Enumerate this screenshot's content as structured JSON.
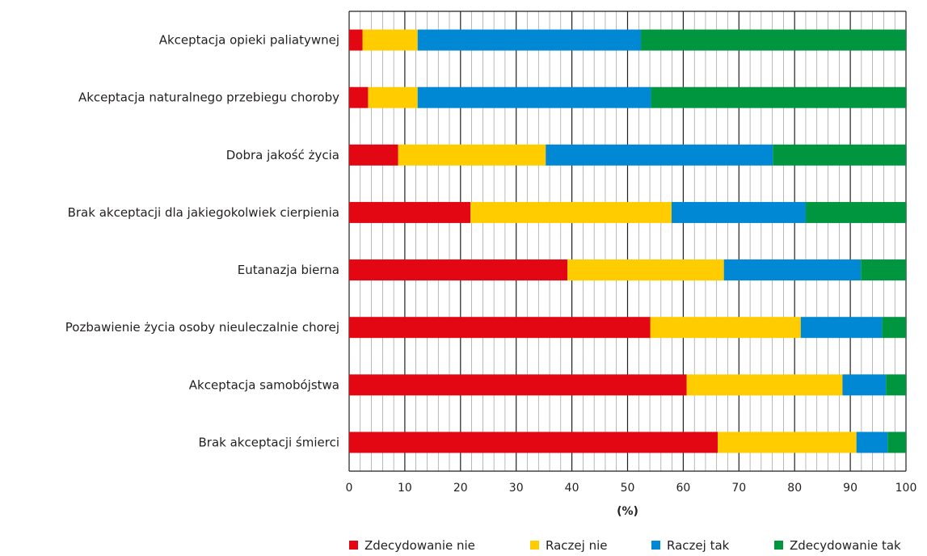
{
  "chart_data": {
    "type": "bar",
    "orientation": "horizontal",
    "stacked": true,
    "categories": [
      "Akceptacja opieki paliatywnej",
      "Akceptacja naturalnego przebiegu choroby",
      "Dobra jakość życia",
      "Brak akceptacji dla jakiegokolwiek cierpienia",
      "Eutanazja bierna",
      "Pozbawienie życia osoby nieuleczalnie chorej",
      "Akceptacja samobójstwa",
      "Brak akceptacji śmierci"
    ],
    "series": [
      {
        "name": "Zdecydowanie nie",
        "color": "#e30613",
        "values": [
          2.4,
          3.4,
          8.8,
          21.8,
          39.2,
          54.1,
          60.6,
          66.2
        ]
      },
      {
        "name": "Raczej nie",
        "color": "#ffcc00",
        "values": [
          9.9,
          8.9,
          26.5,
          36.1,
          28.1,
          27.0,
          28.0,
          24.9
        ]
      },
      {
        "name": "Raczej tak",
        "color": "#0088d4",
        "values": [
          40.1,
          41.9,
          40.8,
          24.1,
          24.6,
          14.6,
          7.8,
          5.6
        ]
      },
      {
        "name": "Zdecydowanie tak",
        "color": "#00963f",
        "values": [
          47.6,
          45.8,
          23.9,
          18.0,
          8.1,
          4.3,
          3.6,
          3.3
        ]
      }
    ],
    "xlabel": "(%)",
    "ylabel": "",
    "xlim": [
      0,
      100
    ],
    "xticks": [
      0,
      10,
      20,
      30,
      40,
      50,
      60,
      70,
      80,
      90,
      100
    ],
    "grid": "vertical major and minor",
    "legend_position": "bottom"
  }
}
